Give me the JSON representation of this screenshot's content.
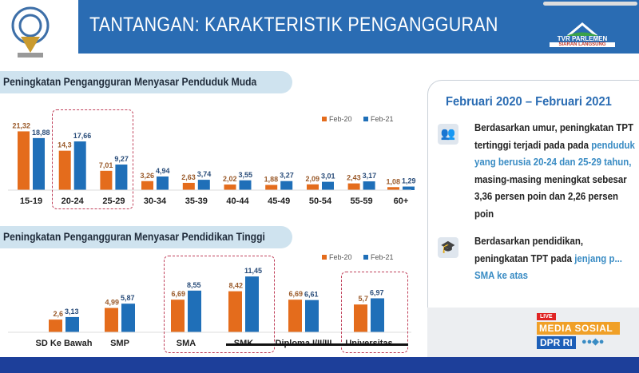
{
  "header": {
    "title": "TANTANGAN: KARAKTERISTIK PENGANGGURAN",
    "broadcaster": "TVR PARLEMEN",
    "broadcaster_sub": "SIARAN LANGSUNG"
  },
  "colors": {
    "feb20": "#e46c1c",
    "feb21": "#1f6fb8",
    "header": "#2a6cb3",
    "highlight_box": "#c0405a"
  },
  "chart_data": [
    {
      "type": "bar",
      "title": "Peningkatan Pengangguran Menyasar Penduduk Muda",
      "legend_position": "top-right",
      "categories": [
        "15-19",
        "20-24",
        "25-29",
        "30-34",
        "35-39",
        "40-44",
        "45-49",
        "50-54",
        "55-59",
        "60+"
      ],
      "series": [
        {
          "name": "Feb-20",
          "values": [
            21.32,
            14.3,
            7.01,
            3.26,
            2.63,
            2.02,
            1.88,
            2.09,
            2.43,
            1.08
          ],
          "labels": [
            "21,32",
            "14,3",
            "7,01",
            "3,26",
            "2,63",
            "2,02",
            "1,88",
            "2,09",
            "2,43",
            "1,08"
          ]
        },
        {
          "name": "Feb-21",
          "values": [
            18.88,
            17.66,
            9.27,
            4.94,
            3.74,
            3.55,
            3.27,
            3.01,
            3.17,
            1.29
          ],
          "labels": [
            "18,88",
            "17,66",
            "9,27",
            "4,94",
            "3,74",
            "3,55",
            "3,27",
            "3,01",
            "3,17",
            "1,29"
          ]
        }
      ],
      "highlighted": [
        "20-24",
        "25-29"
      ]
    },
    {
      "type": "bar",
      "title": "Peningkatan Pengangguran Menyasar Pendidikan Tinggi",
      "legend_position": "top-right",
      "categories": [
        "SD Ke Bawah",
        "SMP",
        "SMA",
        "SMK",
        "Diploma I/II/III",
        "Universitas"
      ],
      "series": [
        {
          "name": "Feb-20",
          "values": [
            2.6,
            4.99,
            6.69,
            8.42,
            6.69,
            5.7
          ],
          "labels": [
            "2,6",
            "4,99",
            "6,69",
            "8,42",
            "6,69",
            "5,7"
          ]
        },
        {
          "name": "Feb-21",
          "values": [
            3.13,
            5.87,
            8.55,
            11.45,
            6.61,
            6.97
          ],
          "labels": [
            "3,13",
            "5,87",
            "8,55",
            "11,45",
            "6,61",
            "6,97"
          ]
        }
      ],
      "highlighted": [
        "SMA",
        "SMK",
        "Universitas"
      ]
    }
  ],
  "panel": {
    "heading": "Februari 2020 – Februari 2021",
    "p1_a": "Berdasarkan umur, peningkatan TPT tertinggi terjadi pada pada ",
    "p1_hl": "penduduk yang berusia 20-24 dan 25-29 tahun,",
    "p1_b": " masing-masing meningkat sebesar 3,36 persen poin dan 2,26 persen poin",
    "p2_a": "Berdasarkan pendidikan, peningkatan TPT ",
    "p2_b": "pada ",
    "p2_hl": "jenjang p... SMA ke atas"
  },
  "overlay": {
    "live": "LIVE",
    "line1": "MEDIA SOSIAL",
    "line2": "DPR RI"
  }
}
